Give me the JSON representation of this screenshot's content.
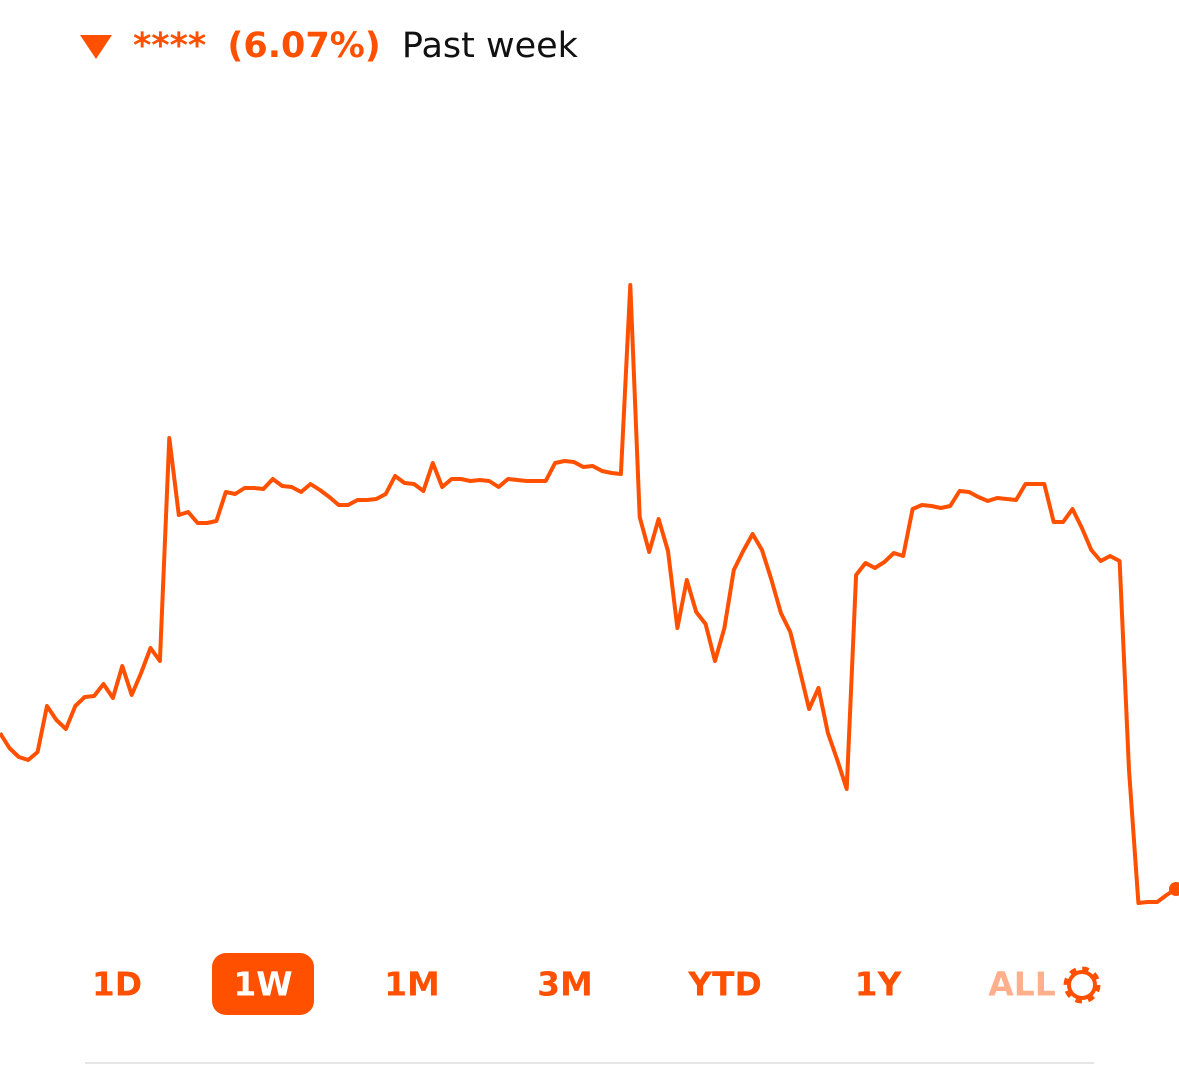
{
  "header": {
    "value": "****",
    "change": "(6.07%)",
    "period": "Past week"
  },
  "chart_data": {
    "type": "line",
    "color": "#ff5000",
    "ylim": [
      0,
      700
    ],
    "values": [
      217,
      202,
      193,
      190,
      198,
      244,
      230,
      221,
      244,
      253,
      254,
      266,
      252,
      284,
      255,
      277,
      302,
      289,
      512,
      435,
      438,
      427,
      427,
      429,
      458,
      456,
      462,
      462,
      461,
      471,
      464,
      463,
      458,
      466,
      460,
      453,
      445,
      445,
      450,
      450,
      451,
      456,
      474,
      467,
      466,
      459,
      487,
      463,
      471,
      471,
      469,
      470,
      469,
      463,
      471,
      470,
      469,
      469,
      469,
      487,
      489,
      488,
      483,
      484,
      479,
      477,
      476,
      665,
      433,
      398,
      431,
      399,
      322,
      370,
      338,
      326,
      289,
      322,
      380,
      399,
      416,
      400,
      370,
      337,
      318,
      280,
      241,
      262,
      217,
      190,
      161,
      375,
      387,
      382,
      388,
      397,
      394,
      441,
      445,
      444,
      442,
      444,
      459,
      458,
      453,
      449,
      452,
      451,
      450,
      466,
      466,
      466,
      428,
      428,
      441,
      422,
      400,
      389,
      394,
      389,
      180,
      47,
      48,
      48,
      55,
      61
    ]
  },
  "ranges": [
    "1D",
    "1W",
    "1M",
    "3M",
    "YTD",
    "1Y",
    "ALL"
  ],
  "selected_range": 1
}
